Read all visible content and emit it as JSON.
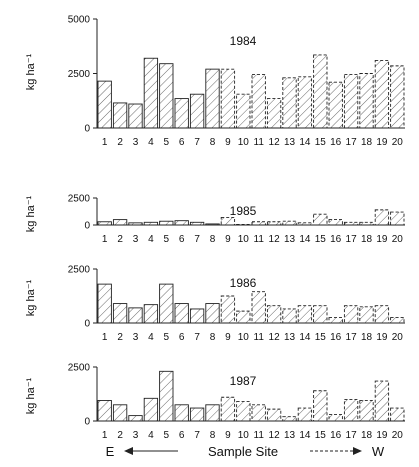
{
  "chart_data": [
    {
      "type": "bar",
      "title": "1984",
      "ylabel": "kg ha⁻¹",
      "ylim": [
        0,
        5000
      ],
      "yticks": [
        "0",
        "2500",
        "5000"
      ],
      "categories": [
        "1",
        "2",
        "3",
        "4",
        "5",
        "6",
        "7",
        "8",
        "9",
        "10",
        "11",
        "12",
        "13",
        "14",
        "15",
        "16",
        "17",
        "18",
        "19",
        "20"
      ],
      "values": [
        2150,
        1150,
        1100,
        3200,
        2950,
        1350,
        1550,
        2700,
        2700,
        1550,
        2450,
        1350,
        2300,
        2350,
        3350,
        2100,
        2450,
        2500,
        3100,
        2850
      ]
    },
    {
      "type": "bar",
      "title": "1985",
      "ylabel": "kg ha⁻¹",
      "ylim": [
        0,
        2500
      ],
      "yticks": [
        "0",
        "2500"
      ],
      "categories": [
        "1",
        "2",
        "3",
        "4",
        "5",
        "6",
        "7",
        "8",
        "9",
        "10",
        "11",
        "12",
        "13",
        "14",
        "15",
        "16",
        "17",
        "18",
        "19",
        "20"
      ],
      "values": [
        300,
        500,
        200,
        250,
        350,
        400,
        250,
        100,
        700,
        50,
        300,
        300,
        350,
        200,
        1000,
        500,
        250,
        250,
        1400,
        1200
      ]
    },
    {
      "type": "bar",
      "title": "1986",
      "ylabel": "kg ha⁻¹",
      "ylim": [
        0,
        2500
      ],
      "yticks": [
        "0",
        "2500"
      ],
      "categories": [
        "1",
        "2",
        "3",
        "4",
        "5",
        "6",
        "7",
        "8",
        "9",
        "10",
        "11",
        "12",
        "13",
        "14",
        "15",
        "16",
        "17",
        "18",
        "19",
        "20"
      ],
      "values": [
        1800,
        900,
        700,
        850,
        1800,
        900,
        650,
        900,
        1250,
        550,
        1450,
        800,
        650,
        800,
        800,
        250,
        800,
        750,
        800,
        250
      ]
    },
    {
      "type": "bar",
      "title": "1987",
      "ylabel": "kg ha⁻¹",
      "ylim": [
        0,
        2500
      ],
      "yticks": [
        "0",
        "2500"
      ],
      "categories": [
        "1",
        "2",
        "3",
        "4",
        "5",
        "6",
        "7",
        "8",
        "9",
        "10",
        "11",
        "12",
        "13",
        "14",
        "15",
        "16",
        "17",
        "18",
        "19",
        "20"
      ],
      "values": [
        950,
        750,
        250,
        1050,
        2300,
        750,
        600,
        750,
        1100,
        900,
        750,
        550,
        200,
        600,
        1400,
        300,
        1000,
        950,
        1850,
        600
      ]
    }
  ],
  "xaxis": {
    "title": "Sample Site",
    "left_label": "E",
    "right_label": "W"
  }
}
